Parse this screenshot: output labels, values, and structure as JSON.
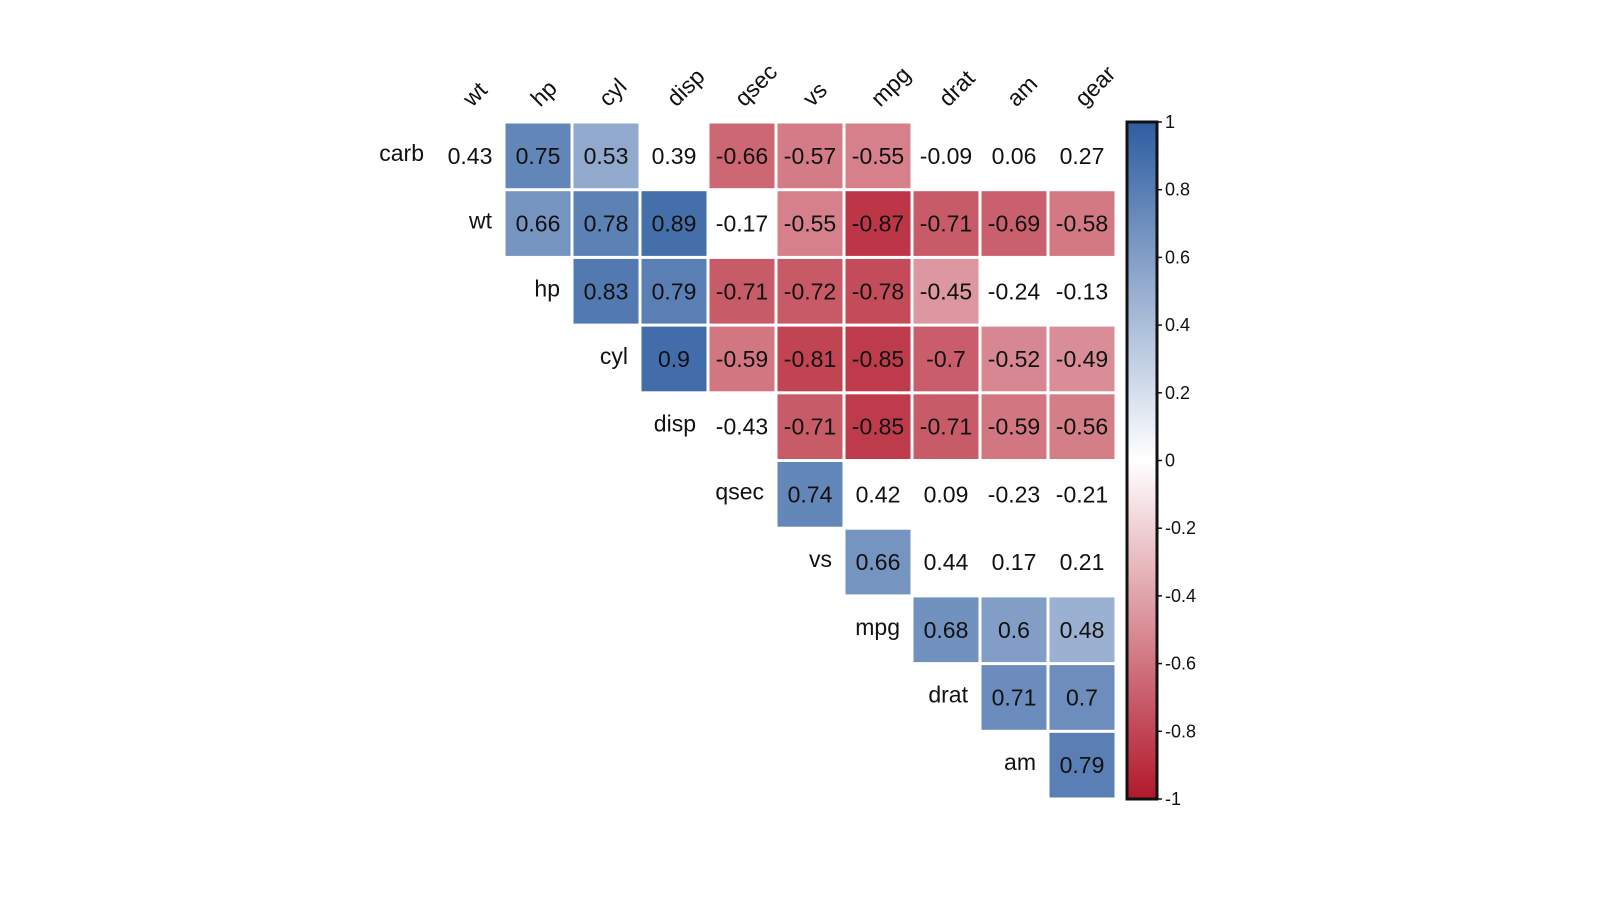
{
  "chart_data": {
    "type": "heatmap",
    "title": "",
    "variables_columns": [
      "wt",
      "hp",
      "cyl",
      "disp",
      "qsec",
      "vs",
      "mpg",
      "drat",
      "am",
      "gear"
    ],
    "variables_rows": [
      "carb",
      "wt",
      "hp",
      "cyl",
      "disp",
      "qsec",
      "vs",
      "mpg",
      "drat",
      "am"
    ],
    "matrix": [
      [
        0.43,
        0.75,
        0.53,
        0.39,
        -0.66,
        -0.57,
        -0.55,
        -0.09,
        0.06,
        0.27
      ],
      [
        null,
        0.66,
        0.78,
        0.89,
        -0.17,
        -0.55,
        -0.87,
        -0.71,
        -0.69,
        -0.58
      ],
      [
        null,
        null,
        0.83,
        0.79,
        -0.71,
        -0.72,
        -0.78,
        -0.45,
        -0.24,
        -0.13
      ],
      [
        null,
        null,
        null,
        0.9,
        -0.59,
        -0.81,
        -0.85,
        -0.7,
        -0.52,
        -0.49
      ],
      [
        null,
        null,
        null,
        null,
        -0.43,
        -0.71,
        -0.85,
        -0.71,
        -0.59,
        -0.56
      ],
      [
        null,
        null,
        null,
        null,
        null,
        0.74,
        0.42,
        0.09,
        -0.23,
        -0.21
      ],
      [
        null,
        null,
        null,
        null,
        null,
        null,
        0.66,
        0.44,
        0.17,
        0.21
      ],
      [
        null,
        null,
        null,
        null,
        null,
        null,
        null,
        0.68,
        0.6,
        0.48
      ],
      [
        null,
        null,
        null,
        null,
        null,
        null,
        null,
        null,
        0.71,
        0.7
      ],
      [
        null,
        null,
        null,
        null,
        null,
        null,
        null,
        null,
        null,
        0.79
      ]
    ],
    "value_labels": [
      [
        "0.43",
        "0.75",
        "0.53",
        "0.39",
        "-0.66",
        "-0.57",
        "-0.55",
        "-0.09",
        "0.06",
        "0.27"
      ],
      [
        null,
        "0.66",
        "0.78",
        "0.89",
        "-0.17",
        "-0.55",
        "-0.87",
        "-0.71",
        "-0.69",
        "-0.58"
      ],
      [
        null,
        null,
        "0.83",
        "0.79",
        "-0.71",
        "-0.72",
        "-0.78",
        "-0.45",
        "-0.24",
        "-0.13"
      ],
      [
        null,
        null,
        null,
        "0.9",
        "-0.59",
        "-0.81",
        "-0.85",
        "-0.7",
        "-0.52",
        "-0.49"
      ],
      [
        null,
        null,
        null,
        null,
        "-0.43",
        "-0.71",
        "-0.85",
        "-0.71",
        "-0.59",
        "-0.56"
      ],
      [
        null,
        null,
        null,
        null,
        null,
        "0.74",
        "0.42",
        "0.09",
        "-0.23",
        "-0.21"
      ],
      [
        null,
        null,
        null,
        null,
        null,
        null,
        "0.66",
        "0.44",
        "0.17",
        "0.21"
      ],
      [
        null,
        null,
        null,
        null,
        null,
        null,
        null,
        "0.68",
        "0.6",
        "0.48"
      ],
      [
        null,
        null,
        null,
        null,
        null,
        null,
        null,
        null,
        "0.71",
        "0.7"
      ],
      [
        null,
        null,
        null,
        null,
        null,
        null,
        null,
        null,
        null,
        "0.79"
      ]
    ],
    "significance_threshold": 0.45,
    "color_scale": {
      "range": [
        -1,
        1
      ],
      "low_color": "#B2182B",
      "mid_color": "#FFFFFF",
      "high_color": "#2E5DA0",
      "ticks": [
        1,
        0.8,
        0.6,
        0.4,
        0.2,
        0,
        -0.2,
        -0.4,
        -0.6,
        -0.8,
        -1
      ],
      "tick_labels": [
        "1",
        "0.8",
        "0.6",
        "0.4",
        "0.2",
        "0",
        "-0.2",
        "-0.4",
        "-0.6",
        "-0.8",
        "-1"
      ]
    },
    "legend_position": "right"
  }
}
